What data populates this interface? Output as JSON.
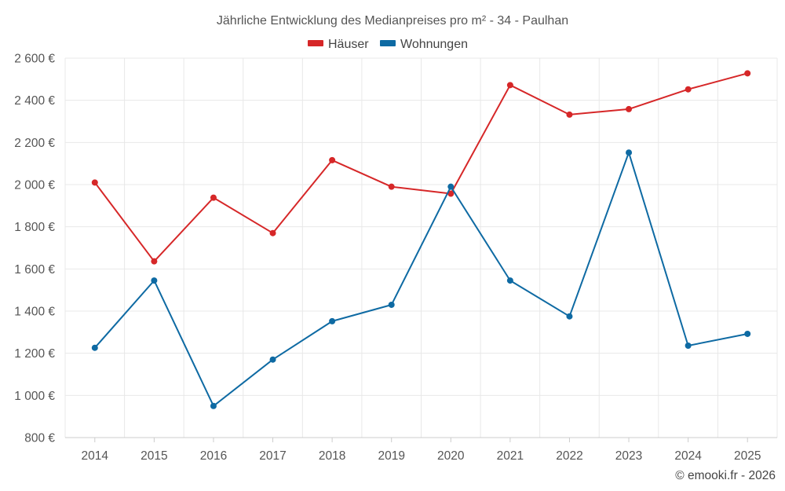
{
  "chart_data": {
    "type": "line",
    "title": "Jährliche Entwicklung des Medianpreises pro m² - 34 - Paulhan",
    "categories": [
      "2014",
      "2015",
      "2016",
      "2017",
      "2018",
      "2019",
      "2020",
      "2021",
      "2022",
      "2023",
      "2024",
      "2025"
    ],
    "series": [
      {
        "name": "Häuser",
        "color": "#d62728",
        "values": [
          2010,
          1636,
          1938,
          1770,
          2116,
          1990,
          1957,
          2472,
          2332,
          2358,
          2452,
          2528
        ]
      },
      {
        "name": "Wohnungen",
        "color": "#0e6aa3",
        "values": [
          1226,
          1545,
          950,
          1170,
          1352,
          1430,
          1990,
          1545,
          1375,
          2152,
          1236,
          1292
        ]
      }
    ],
    "ylim": [
      800,
      2600
    ],
    "yticks": [
      800,
      1000,
      1200,
      1400,
      1600,
      1800,
      2000,
      2200,
      2400,
      2600
    ],
    "ytick_labels": [
      "800 €",
      "1 000 €",
      "1 200 €",
      "1 400 €",
      "1 600 €",
      "1 800 €",
      "2 000 €",
      "2 200 €",
      "2 400 €",
      "2 600 €"
    ],
    "xlabel": "",
    "ylabel": "",
    "grid": true,
    "legend_position": "top-center"
  },
  "credit": "© emooki.fr - 2026"
}
